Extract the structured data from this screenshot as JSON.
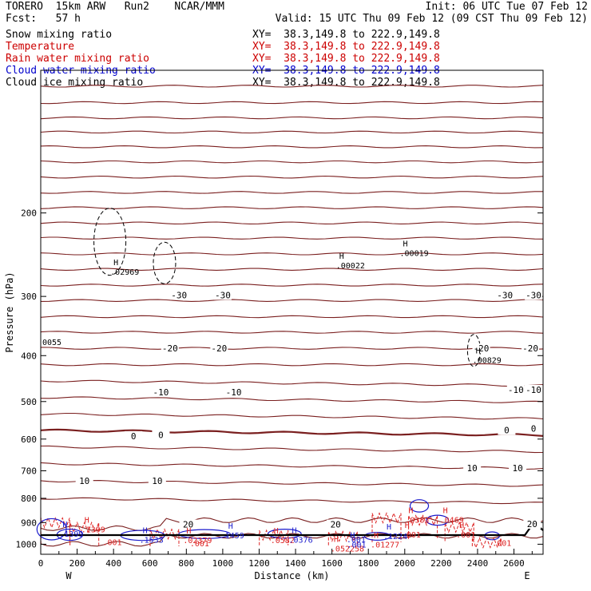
{
  "header": {
    "model": "TORERO  15km ARW   Run2    NCAR/MMM",
    "init": "Init: 06 UTC Tue 07 Feb 12",
    "fcst": "Fcst:   57 h",
    "valid": "Valid: 15 UTC Thu 09 Feb 12 (09 CST Thu 09 Feb 12)"
  },
  "fields": [
    {
      "name": "Snow mixing ratio",
      "xy": "XY=  38.3,149.8 to 222.9,149.8",
      "color": "#000000",
      "xy_color": "#000000"
    },
    {
      "name": "Temperature",
      "xy": "XY=  38.3,149.8 to 222.9,149.8",
      "color": "#cc0000",
      "xy_color": "#cc0000"
    },
    {
      "name": "Rain water mixing ratio",
      "xy": "XY=  38.3,149.8 to 222.9,149.8",
      "color": "#cc0000",
      "xy_color": "#cc0000"
    },
    {
      "name": "Cloud water mixing ratio",
      "xy": "XY=  38.3,149.8 to 222.9,149.8",
      "color": "#0000cc",
      "xy_color": "#0000cc"
    },
    {
      "name": "Cloud ice mixing ratio",
      "xy": "XY=  38.3,149.8 to 222.9,149.8",
      "color": "#000000",
      "xy_color": "#000000"
    }
  ],
  "colors": {
    "temperature": "#7a1f1f",
    "rain": "#dd2222",
    "cloud_water": "#1a1acc",
    "snow": "#000000",
    "ice": "#000000"
  },
  "chart_data": {
    "type": "cross-section",
    "xlabel": "Distance (km)",
    "ylabel": "Pressure (hPa)",
    "xlim": [
      0,
      2760
    ],
    "x_ticks": [
      0,
      200,
      400,
      600,
      800,
      1000,
      1200,
      1400,
      1600,
      1800,
      2000,
      2200,
      2400,
      2600
    ],
    "y_ticks": [
      200,
      300,
      400,
      500,
      600,
      700,
      800,
      900,
      1000
    ],
    "y_scale": "log",
    "ylim": [
      100,
      1050
    ],
    "left_end_label": "W",
    "right_end_label": "E",
    "temperature_labels": [
      {
        "text": "-30",
        "x": 760,
        "p": 298
      },
      {
        "text": "-30",
        "x": 1000,
        "p": 298
      },
      {
        "text": "-30",
        "x": 2550,
        "p": 298
      },
      {
        "text": "-30",
        "x": 2720,
        "p": 298
      },
      {
        "text": "-20",
        "x": 710,
        "p": 386
      },
      {
        "text": "-20",
        "x": 980,
        "p": 386
      },
      {
        "text": "-20",
        "x": 2420,
        "p": 386
      },
      {
        "text": "-20",
        "x": 2690,
        "p": 386
      },
      {
        "text": "-10",
        "x": 660,
        "p": 478
      },
      {
        "text": "-10",
        "x": 1060,
        "p": 478
      },
      {
        "text": "-10",
        "x": 2610,
        "p": 472
      },
      {
        "text": "-10",
        "x": 2760,
        "p": 472
      },
      {
        "text": "0",
        "x": 510,
        "p": 591
      },
      {
        "text": "0",
        "x": 660,
        "p": 588
      },
      {
        "text": "0",
        "x": 2560,
        "p": 574
      },
      {
        "text": "0",
        "x": 2860,
        "p": 570
      },
      {
        "text": "10",
        "x": 2370,
        "p": 690
      },
      {
        "text": "10",
        "x": 2620,
        "p": 690
      },
      {
        "text": "10",
        "x": 240,
        "p": 735
      },
      {
        "text": "10",
        "x": 640,
        "p": 735
      },
      {
        "text": "20",
        "x": 810,
        "p": 908
      },
      {
        "text": "20",
        "x": 1620,
        "p": 908
      },
      {
        "text": "20",
        "x": 2700,
        "p": 906
      }
    ],
    "extrema_labels": [
      {
        "text": "H",
        "x": 400,
        "p": 262,
        "value": ".02969",
        "color": "#000000"
      },
      {
        "text": "H",
        "x": 1640,
        "p": 254,
        "value": ".00022",
        "color": "#000000"
      },
      {
        "text": "H",
        "x": 1990,
        "p": 239,
        "value": ".00019",
        "color": "#000000"
      },
      {
        "text": "H",
        "x": 2390,
        "p": 402,
        "value": ".00829",
        "color": "#000000"
      },
      {
        "text": "",
        "x": 0,
        "p": 368,
        "value": "0055",
        "color": "#000000"
      },
      {
        "text": "H",
        "x": 2020,
        "p": 873,
        "value": ".0382",
        "color": "#dd2222"
      },
      {
        "text": "H",
        "x": 2210,
        "p": 873,
        "value": ".0469",
        "color": "#dd2222"
      },
      {
        "text": "H",
        "x": 240,
        "p": 915,
        "value": ".1399",
        "color": "#dd2222"
      },
      {
        "text": "H",
        "x": 800,
        "p": 965,
        "value": ".02379",
        "color": "#dd2222"
      },
      {
        "text": "H",
        "x": 1280,
        "p": 965,
        "value": ".0582",
        "color": "#dd2222"
      },
      {
        "text": "H",
        "x": 2000,
        "p": 938,
        "value": ".001",
        "color": "#dd2222"
      },
      {
        "text": "H",
        "x": 2300,
        "p": 938,
        "value": ".001",
        "color": "#dd2222"
      },
      {
        "text": "H",
        "x": 1830,
        "p": 985,
        "value": ".01277",
        "color": "#dd2222"
      },
      {
        "text": "H",
        "x": 1610,
        "p": 1005,
        "value": ".052258",
        "color": "#dd2222"
      },
      {
        "text": "H",
        "x": 1030,
        "p": 942,
        "value": "1459",
        "color": "#1a1acc"
      },
      {
        "text": "H",
        "x": 560,
        "p": 963,
        "value": ".1533",
        "color": "#1a1acc"
      },
      {
        "text": "H",
        "x": 1900,
        "p": 945,
        "value": ".1224",
        "color": "#1a1acc"
      },
      {
        "text": "H",
        "x": 1700,
        "p": 985,
        "value": ".001",
        "color": "#1a1acc"
      },
      {
        "text": "H",
        "x": 1380,
        "p": 963,
        "value": ".0376",
        "color": "#1a1acc"
      },
      {
        "text": "H",
        "x": 120,
        "p": 935,
        "value": ".1399",
        "color": "#1a1acc"
      }
    ],
    "small_labels": [
      {
        "text": ".001",
        "x": 340,
        "p": 1005,
        "color": "#dd2222"
      },
      {
        "text": ".001",
        "x": 820,
        "p": 1010,
        "color": "#dd2222"
      },
      {
        "text": ".001",
        "x": 2480,
        "p": 1008,
        "color": "#dd2222"
      },
      {
        "text": ".001",
        "x": 1680,
        "p": 990,
        "color": "#1a1acc"
      }
    ]
  }
}
